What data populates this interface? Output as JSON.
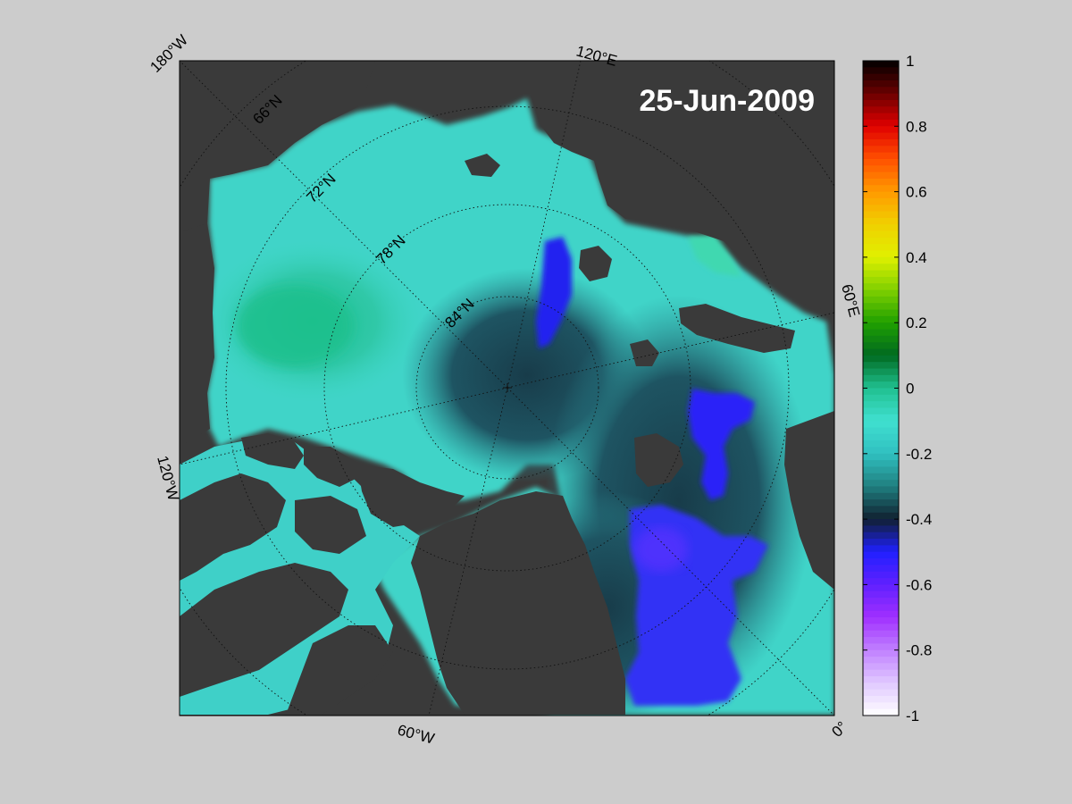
{
  "map": {
    "date_label": "25-Jun-2009",
    "projection": "north-polar-stereographic",
    "longitude_labels": [
      "180°W",
      "120°E",
      "60°E",
      "0°",
      "60°W",
      "120°W"
    ],
    "latitude_labels": [
      "66°N",
      "72°N",
      "78°N",
      "84°N"
    ],
    "colors": {
      "background": "#cccccc",
      "land": "#3a3a3a",
      "ice_shelf": "#808080",
      "ocean_base": "#40d0c8",
      "anomaly_low": "#2d2df0",
      "anomaly_mid": "#1e4d5a",
      "anomaly_high": "#20c090"
    }
  },
  "colorbar": {
    "tick_labels": [
      "1",
      "0.8",
      "0.6",
      "0.4",
      "0.2",
      "0",
      "-0.2",
      "-0.4",
      "-0.6",
      "-0.8",
      "-1"
    ],
    "range": [
      -1,
      1
    ],
    "colormap": [
      {
        "value": 1.0,
        "color": "#000000"
      },
      {
        "value": 0.9,
        "color": "#6a0000"
      },
      {
        "value": 0.8,
        "color": "#e00000"
      },
      {
        "value": 0.7,
        "color": "#ff5000"
      },
      {
        "value": 0.6,
        "color": "#ff9a00"
      },
      {
        "value": 0.5,
        "color": "#f0d000"
      },
      {
        "value": 0.4,
        "color": "#e0f000"
      },
      {
        "value": 0.3,
        "color": "#80d000"
      },
      {
        "value": 0.2,
        "color": "#20a000"
      },
      {
        "value": 0.1,
        "color": "#006a20"
      },
      {
        "value": 0.0,
        "color": "#20c090"
      },
      {
        "value": -0.1,
        "color": "#40e0d0"
      },
      {
        "value": -0.2,
        "color": "#30c0c0"
      },
      {
        "value": -0.3,
        "color": "#208080"
      },
      {
        "value": -0.4,
        "color": "#102030"
      },
      {
        "value": -0.5,
        "color": "#2020ff"
      },
      {
        "value": -0.6,
        "color": "#6020ff"
      },
      {
        "value": -0.7,
        "color": "#a030ff"
      },
      {
        "value": -0.8,
        "color": "#c080ff"
      },
      {
        "value": -0.9,
        "color": "#e0c8ff"
      },
      {
        "value": -1.0,
        "color": "#ffffff"
      }
    ]
  }
}
